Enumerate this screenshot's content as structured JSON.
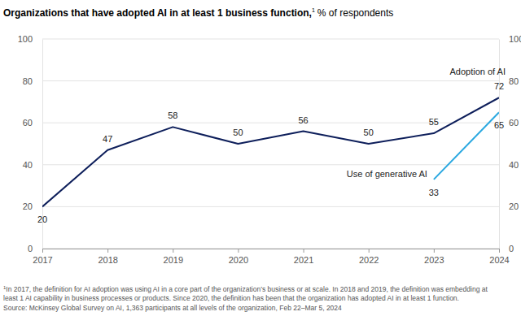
{
  "chart_data": {
    "type": "line",
    "title": "Organizations that have adopted AI in at least 1 business function,",
    "title_note": "1",
    "subtitle": "% of respondents",
    "x": [
      2017,
      2018,
      2019,
      2020,
      2021,
      2022,
      2023,
      2024
    ],
    "series": [
      {
        "name": "Adoption of AI",
        "color": "#0e1f5b",
        "values": [
          20,
          47,
          58,
          50,
          56,
          50,
          55,
          72
        ]
      },
      {
        "name": "Use of generative AI",
        "color": "#2aa8e0",
        "values": [
          null,
          null,
          null,
          null,
          null,
          null,
          33,
          65
        ]
      }
    ],
    "xlim": [
      2017,
      2024
    ],
    "xticks": [
      2017,
      2018,
      2019,
      2020,
      2021,
      2022,
      2023,
      2024
    ],
    "ylim": [
      0,
      100
    ],
    "yticks": [
      0,
      20,
      40,
      60,
      80,
      100
    ],
    "y2lim": [
      0,
      100
    ],
    "y2ticks": [
      0,
      20,
      40,
      60,
      80,
      100
    ],
    "grid": true,
    "data_labels": true,
    "footnote": [
      "In 2017, the definition for AI adoption was using AI in a core part of the organization’s business or at scale. In 2018 and 2019, the definition was embedding at",
      "least 1 AI capability in business processes or products. Since 2020, the definition has been that the organization has adopted AI in at least 1 function."
    ],
    "source": "Source: McKinsey Global Survey on AI, 1,363 participants at all levels of the organization, Feb 22–Mar 5, 2024"
  }
}
